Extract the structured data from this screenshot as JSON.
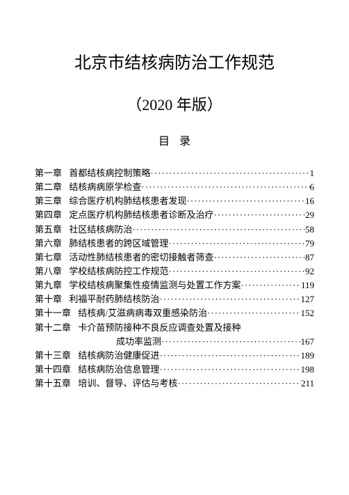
{
  "document": {
    "title": "北京市结核病防治工作规范",
    "subtitle": "（2020 年版）",
    "toc_heading": "目录",
    "text_color": "#000000",
    "background_color": "#ffffff",
    "title_fontsize": 24,
    "subtitle_fontsize": 22,
    "toc_heading_fontsize": 16,
    "toc_fontsize": 13
  },
  "toc": {
    "chapter_gap_em": 1,
    "entries": [
      {
        "chapter": "第一章",
        "title": "首都结核病控制策略",
        "page": "1"
      },
      {
        "chapter": "第二章",
        "title": "结核病病原学检查",
        "page": "6"
      },
      {
        "chapter": "第三章",
        "title": "综合医疗机构肺结核患者发现",
        "page": "16"
      },
      {
        "chapter": "第四章",
        "title": "定点医疗机构肺结核患者诊断及治疗",
        "page": "29"
      },
      {
        "chapter": "第五章",
        "title": "社区结核病防治",
        "page": "58"
      },
      {
        "chapter": "第六章",
        "title": "肺结核患者的跨区域管理",
        "page": "79"
      },
      {
        "chapter": "第七章",
        "title": "活动性肺结核患者的密切接触者筛查",
        "page": "87"
      },
      {
        "chapter": "第八章",
        "title": "学校结核病防控工作规范",
        "page": "92"
      },
      {
        "chapter": "第九章",
        "title": "学校结核病聚集性疫情监测与处置工作方案",
        "page": "119"
      },
      {
        "chapter": "第十章",
        "title": "利福平耐药肺结核防治",
        "page": "127"
      },
      {
        "chapter": "第十一章",
        "title": "结核病/艾滋病病毒双重感染防治",
        "page": "152"
      },
      {
        "chapter": "第十二章",
        "title": "卡介苗预防接种不良反应调查处置及接种",
        "continuation": "成功率监测",
        "page": "167"
      },
      {
        "chapter": "第十三章",
        "title": "结核病防治健康促进",
        "page": "189"
      },
      {
        "chapter": "第十四章",
        "title": "结核病防治信息管理",
        "page": "198"
      },
      {
        "chapter": "第十五章",
        "title": "培训、督导、评估与考核",
        "page": "211"
      }
    ]
  }
}
